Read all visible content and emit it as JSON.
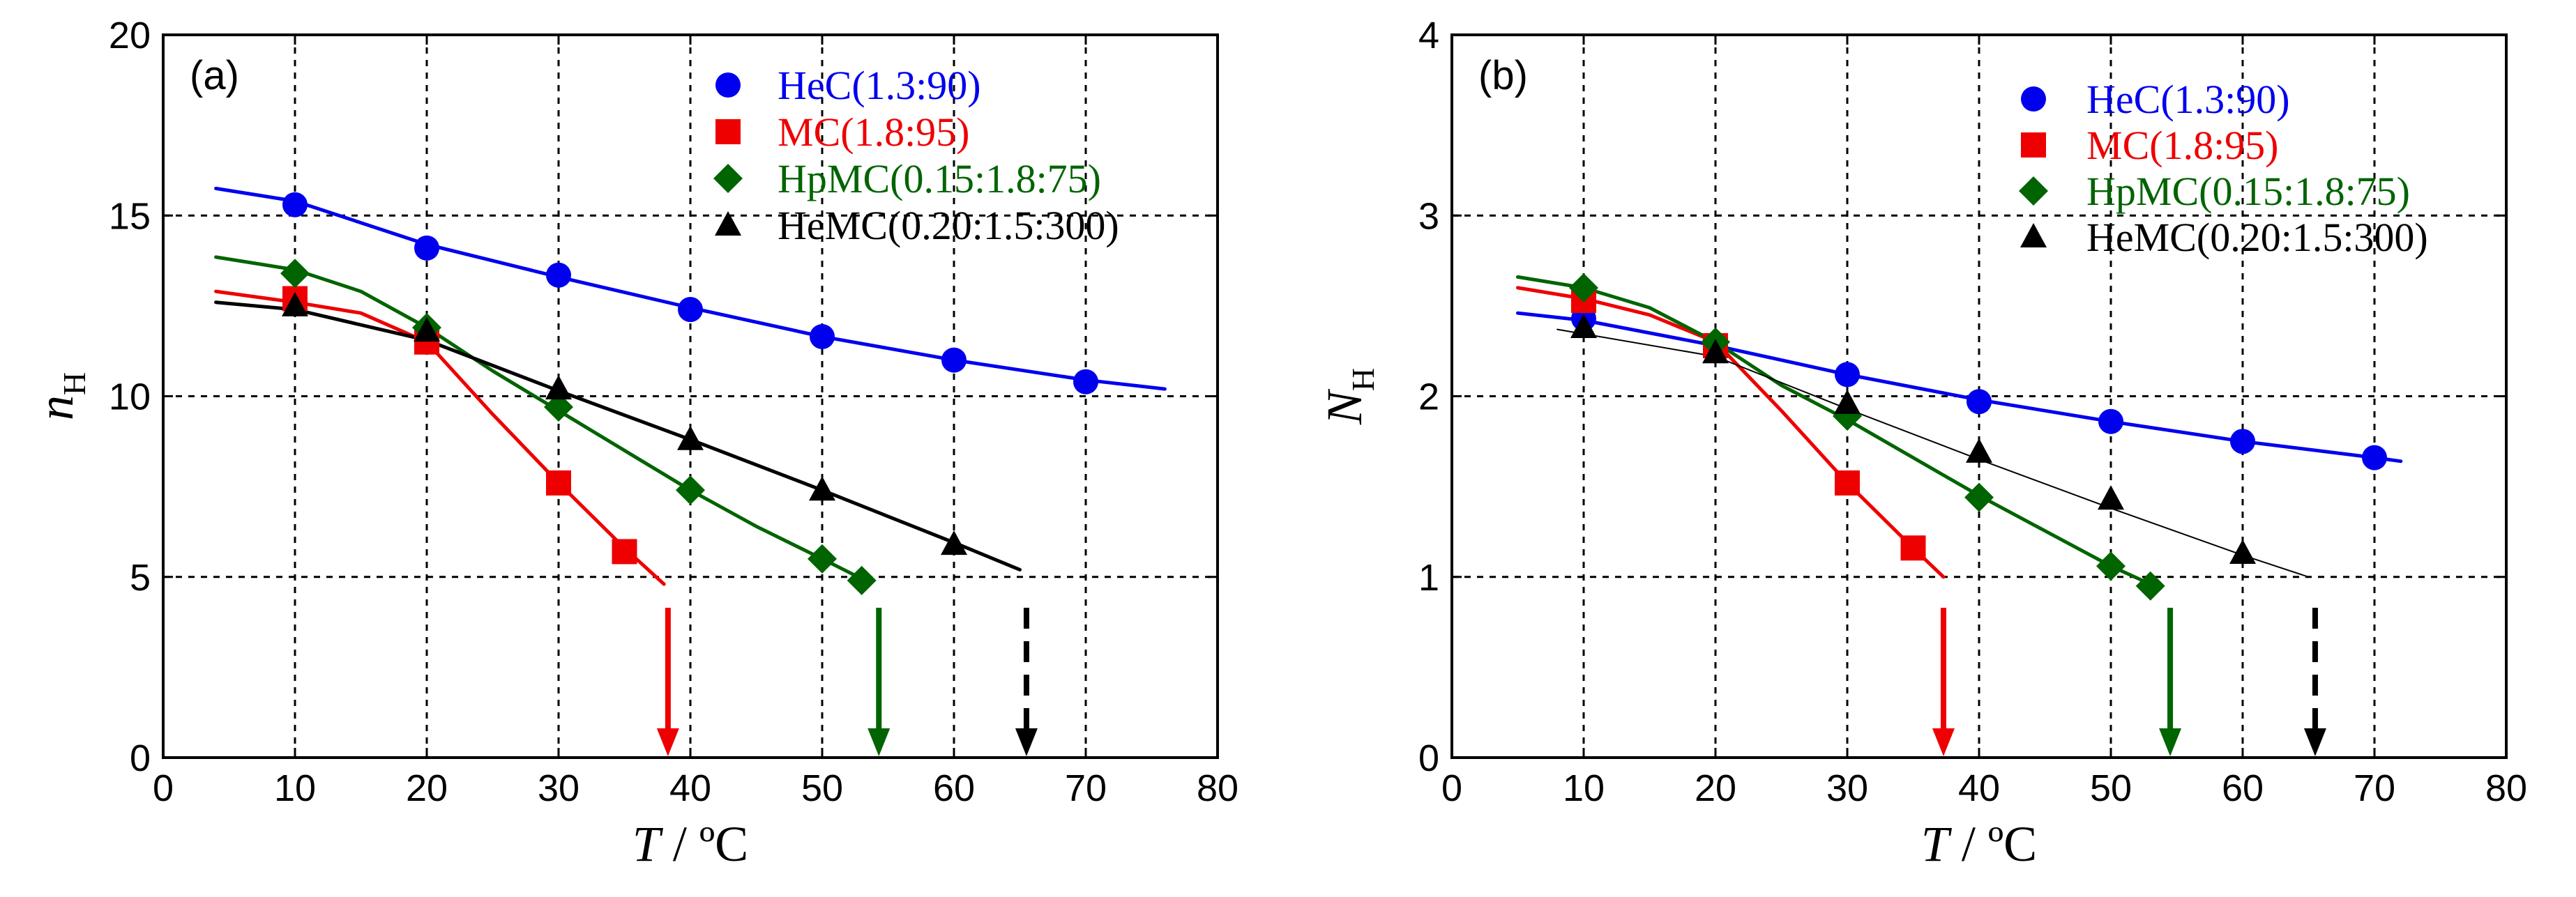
{
  "chart_data": [
    {
      "type": "scatter",
      "panel_label": "(a)",
      "xlabel_var": "T",
      "xlabel_rest": " / ºC",
      "ylabel_var": "n",
      "ylabel_sub": "H",
      "xlim": [
        0,
        80
      ],
      "ylim": [
        0,
        20
      ],
      "xticks": [
        0,
        10,
        20,
        30,
        40,
        50,
        60,
        70,
        80
      ],
      "yticks": [
        0,
        5,
        10,
        15,
        20
      ],
      "grid": true,
      "legend_position": "top-right",
      "series": [
        {
          "name": "HeC(1.3:90)",
          "color": "#0000ee",
          "marker": "circle",
          "x": [
            10,
            20,
            30,
            40,
            50,
            60,
            70
          ],
          "y": [
            15.3,
            14.1,
            13.35,
            12.4,
            11.65,
            11.0,
            10.4
          ],
          "curve": [
            [
              4,
              15.75
            ],
            [
              10,
              15.4
            ],
            [
              20,
              14.2
            ],
            [
              30,
              13.3
            ],
            [
              40,
              12.45
            ],
            [
              50,
              11.65
            ],
            [
              60,
              11.0
            ],
            [
              70,
              10.45
            ],
            [
              76,
              10.2
            ]
          ],
          "curve_width": 5
        },
        {
          "name": "MC(1.8:95)",
          "color": "#ee0000",
          "marker": "square",
          "x": [
            10,
            20,
            30,
            35
          ],
          "y": [
            12.7,
            11.5,
            7.6,
            5.7
          ],
          "curve": [
            [
              4,
              12.9
            ],
            [
              10,
              12.6
            ],
            [
              15,
              12.3
            ],
            [
              20,
              11.5
            ],
            [
              25,
              9.5
            ],
            [
              30,
              7.6
            ],
            [
              35,
              5.8
            ],
            [
              38,
              4.8
            ]
          ],
          "curve_width": 5,
          "arrow_x": 38.3,
          "arrow_style": "solid"
        },
        {
          "name": "HpMC(0.15:1.8:75)",
          "color": "#006400",
          "marker": "diamond",
          "x": [
            10,
            20,
            30,
            40,
            50,
            53
          ],
          "y": [
            13.4,
            11.9,
            9.7,
            7.4,
            5.5,
            4.9
          ],
          "curve": [
            [
              4,
              13.85
            ],
            [
              10,
              13.5
            ],
            [
              15,
              12.9
            ],
            [
              20,
              11.9
            ],
            [
              25,
              10.7
            ],
            [
              30,
              9.6
            ],
            [
              35,
              8.5
            ],
            [
              40,
              7.4
            ],
            [
              45,
              6.4
            ],
            [
              50,
              5.5
            ],
            [
              53,
              4.95
            ]
          ],
          "curve_width": 5,
          "arrow_x": 54.3,
          "arrow_style": "solid"
        },
        {
          "name": "HeMC(0.20:1.5:300)",
          "color": "#000000",
          "marker": "triangle",
          "x": [
            10,
            20,
            30,
            40,
            50,
            60
          ],
          "y": [
            12.5,
            11.8,
            10.2,
            8.8,
            7.4,
            5.9
          ],
          "curve": [
            [
              4,
              12.6
            ],
            [
              10,
              12.4
            ],
            [
              20,
              11.55
            ],
            [
              30,
              10.15
            ],
            [
              40,
              8.8
            ],
            [
              50,
              7.4
            ],
            [
              60,
              5.95
            ],
            [
              65,
              5.2
            ]
          ],
          "curve_width": 5,
          "arrow_x": 65.5,
          "arrow_style": "dashed"
        }
      ]
    },
    {
      "type": "scatter",
      "panel_label": "(b)",
      "xlabel_var": "T",
      "xlabel_rest": " / ºC",
      "ylabel_var": "N",
      "ylabel_sub": "H",
      "xlim": [
        0,
        80
      ],
      "ylim": [
        0,
        4
      ],
      "xticks": [
        0,
        10,
        20,
        30,
        40,
        50,
        60,
        70,
        80
      ],
      "yticks": [
        0,
        1,
        2,
        3,
        4
      ],
      "grid": true,
      "legend_position": "top-right",
      "series": [
        {
          "name": "HeC(1.3:90)",
          "color": "#0000ee",
          "marker": "circle",
          "x": [
            10,
            20,
            30,
            40,
            50,
            60,
            70
          ],
          "y": [
            2.43,
            2.28,
            2.12,
            1.97,
            1.86,
            1.75,
            1.66
          ],
          "curve": [
            [
              5,
              2.46
            ],
            [
              10,
              2.42
            ],
            [
              20,
              2.28
            ],
            [
              30,
              2.12
            ],
            [
              40,
              1.98
            ],
            [
              50,
              1.86
            ],
            [
              60,
              1.75
            ],
            [
              70,
              1.66
            ],
            [
              72,
              1.64
            ]
          ],
          "curve_width": 5
        },
        {
          "name": "MC(1.8:95)",
          "color": "#ee0000",
          "marker": "square",
          "x": [
            10,
            20,
            30,
            35
          ],
          "y": [
            2.53,
            2.28,
            1.52,
            1.16
          ],
          "curve": [
            [
              5,
              2.6
            ],
            [
              10,
              2.54
            ],
            [
              15,
              2.45
            ],
            [
              20,
              2.3
            ],
            [
              25,
              1.92
            ],
            [
              30,
              1.52
            ],
            [
              35,
              1.16
            ],
            [
              37.3,
              1.0
            ]
          ],
          "curve_width": 5,
          "arrow_x": 37.3,
          "arrow_style": "solid"
        },
        {
          "name": "HpMC(0.15:1.8:75)",
          "color": "#006400",
          "marker": "diamond",
          "x": [
            10,
            20,
            30,
            40,
            50,
            53
          ],
          "y": [
            2.6,
            2.3,
            1.89,
            1.44,
            1.06,
            0.95
          ],
          "curve": [
            [
              5,
              2.66
            ],
            [
              10,
              2.6
            ],
            [
              15,
              2.49
            ],
            [
              20,
              2.3
            ],
            [
              25,
              2.06
            ],
            [
              30,
              1.87
            ],
            [
              40,
              1.45
            ],
            [
              50,
              1.06
            ],
            [
              53,
              0.96
            ]
          ],
          "curve_width": 5,
          "arrow_x": 54.5,
          "arrow_style": "solid"
        },
        {
          "name": "HeMC(0.20:1.5:300)",
          "color": "#000000",
          "marker": "triangle",
          "x": [
            10,
            20,
            30,
            40,
            50,
            60
          ],
          "y": [
            2.38,
            2.24,
            1.96,
            1.69,
            1.43,
            1.13
          ],
          "curve": [
            [
              8,
              2.37
            ],
            [
              20,
              2.22
            ],
            [
              30,
              1.93
            ],
            [
              40,
              1.65
            ],
            [
              50,
              1.38
            ],
            [
              60,
              1.12
            ],
            [
              65,
              1.0
            ]
          ],
          "curve_width": 2,
          "arrow_x": 65.5,
          "arrow_style": "dashed"
        }
      ]
    }
  ]
}
